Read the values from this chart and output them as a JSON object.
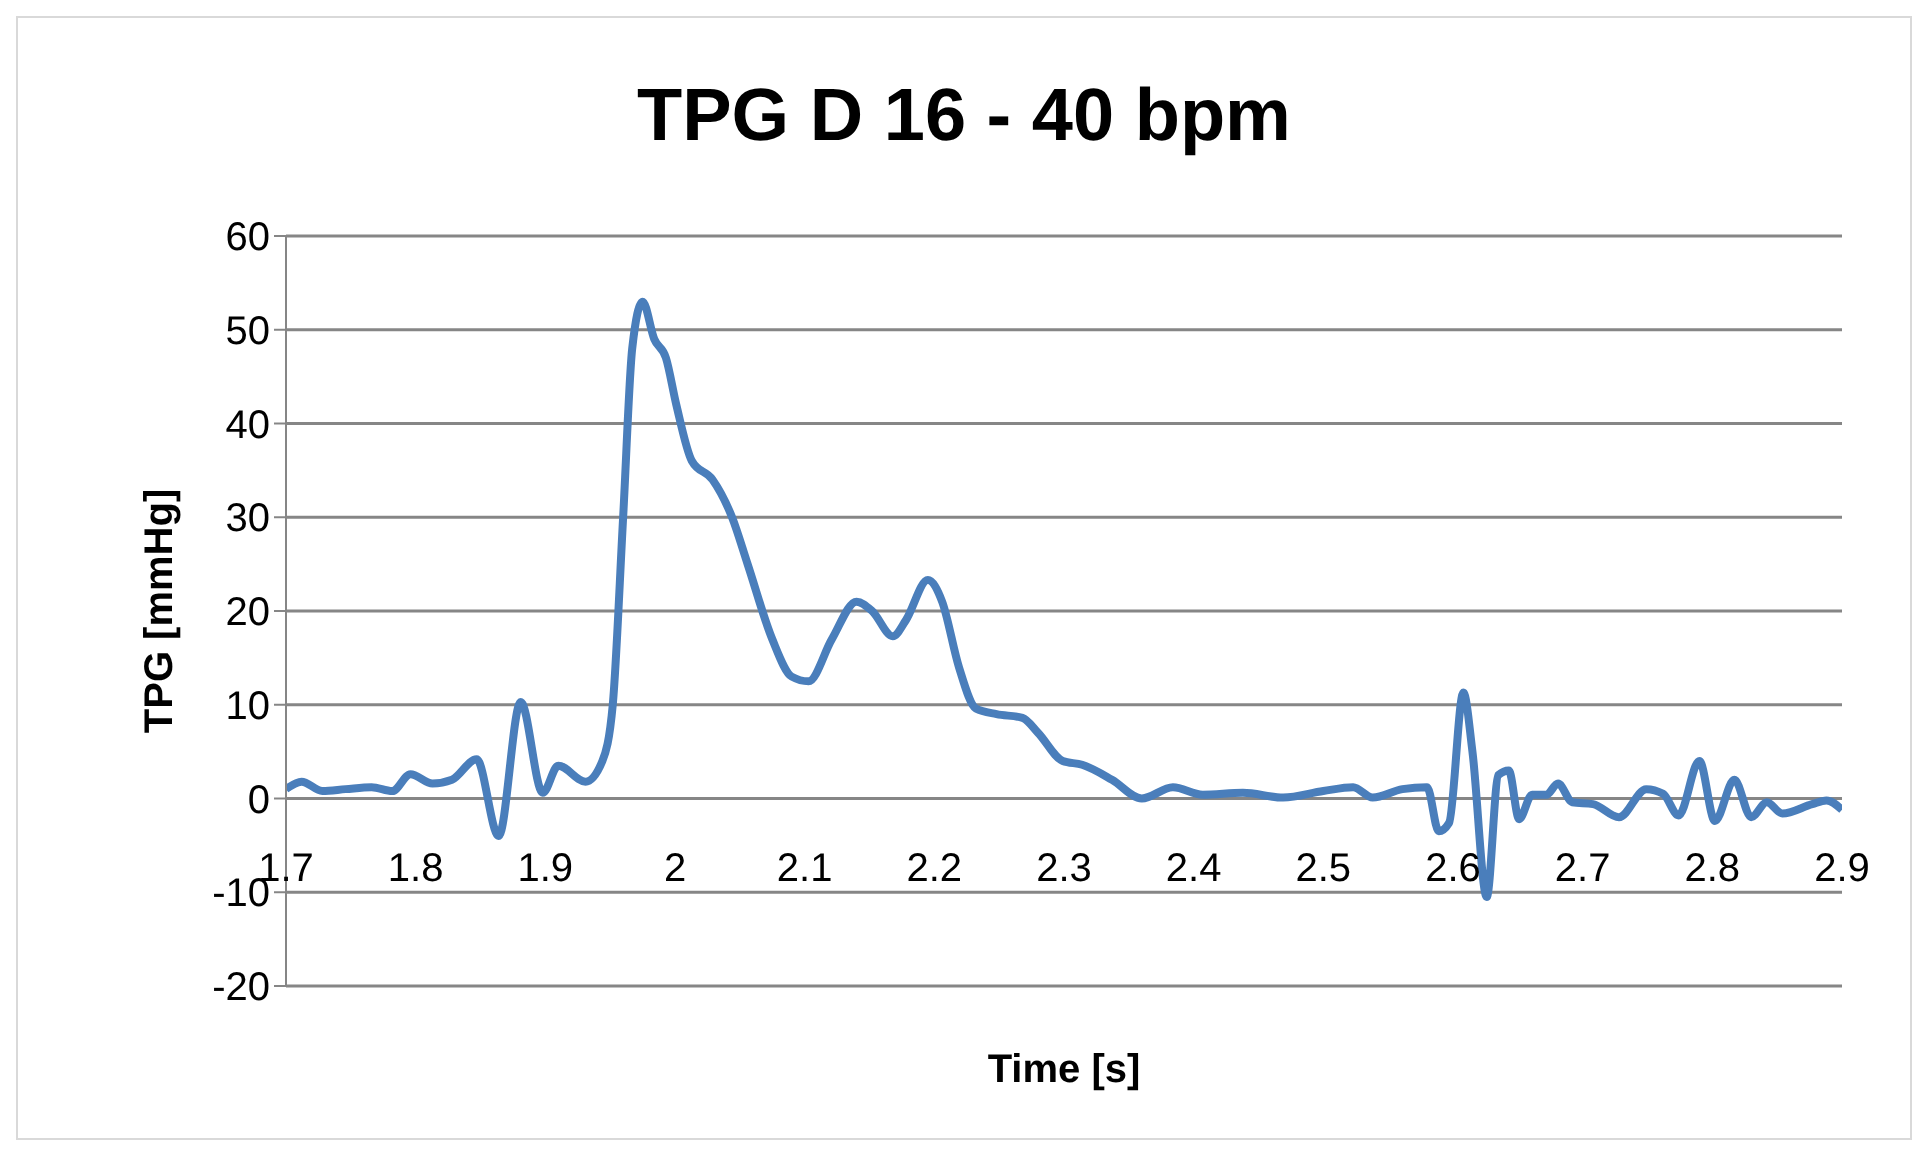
{
  "chart_data": {
    "type": "line",
    "title": "TPG D 16 - 40 bpm",
    "xlabel": "Time [s]",
    "ylabel": "TPG [mmHg]",
    "xlim": [
      1.7,
      2.9
    ],
    "xticks": [
      1.7,
      1.8,
      1.9,
      2,
      2.1,
      2.2,
      2.3,
      2.4,
      2.5,
      2.6,
      2.7,
      2.8,
      2.9
    ],
    "ylim": [
      -20,
      60
    ],
    "yticks": [
      -20,
      -10,
      0,
      10,
      20,
      30,
      40,
      50,
      60
    ],
    "grid": "y",
    "marker": "none",
    "line_style": "solid",
    "series": [
      {
        "color": "#4a7ebb",
        "x": [
          1.7,
          1.712,
          1.728,
          1.746,
          1.766,
          1.782,
          1.796,
          1.813,
          1.828,
          1.847,
          1.864,
          1.881,
          1.898,
          1.91,
          1.931,
          1.944,
          1.952,
          1.96,
          1.967,
          1.975,
          1.984,
          1.993,
          2.001,
          2.013,
          2.029,
          2.044,
          2.056,
          2.075,
          2.09,
          2.103,
          2.121,
          2.14,
          2.152,
          2.168,
          2.178,
          2.195,
          2.206,
          2.219,
          2.232,
          2.248,
          2.268,
          2.28,
          2.299,
          2.314,
          2.337,
          2.36,
          2.384,
          2.407,
          2.438,
          2.469,
          2.5,
          2.523,
          2.538,
          2.561,
          2.58,
          2.589,
          2.597,
          2.608,
          2.615,
          2.626,
          2.635,
          2.643,
          2.651,
          2.661,
          2.672,
          2.681,
          2.692,
          2.708,
          2.728,
          2.749,
          2.762,
          2.774,
          2.79,
          2.802,
          2.817,
          2.83,
          2.842,
          2.854,
          2.877,
          2.888,
          2.9
        ],
        "values": [
          1,
          1.8,
          0.8,
          1,
          1.2,
          0.8,
          2.6,
          1.6,
          2,
          4.2,
          -4,
          10.3,
          0.6,
          3.5,
          1.8,
          4,
          10,
          30,
          48,
          53,
          49,
          47,
          42,
          36,
          34,
          30,
          25,
          17,
          13,
          12.5,
          17,
          21,
          20,
          17.3,
          19,
          23.3,
          21,
          14,
          9.6,
          9,
          8.6,
          7,
          4,
          3.6,
          2,
          0,
          1.2,
          0.4,
          0.6,
          0.1,
          0.8,
          1.2,
          0.1,
          1,
          1.2,
          -3.5,
          -2.6,
          11.3,
          5,
          -10.5,
          2.5,
          3,
          -2.2,
          0.4,
          0.4,
          1.6,
          -0.4,
          -0.6,
          -2,
          1,
          0.5,
          -1.8,
          4,
          -2.4,
          2,
          -2,
          -0.4,
          -1.6,
          -0.6,
          -0.2,
          -1.2
        ]
      }
    ]
  }
}
